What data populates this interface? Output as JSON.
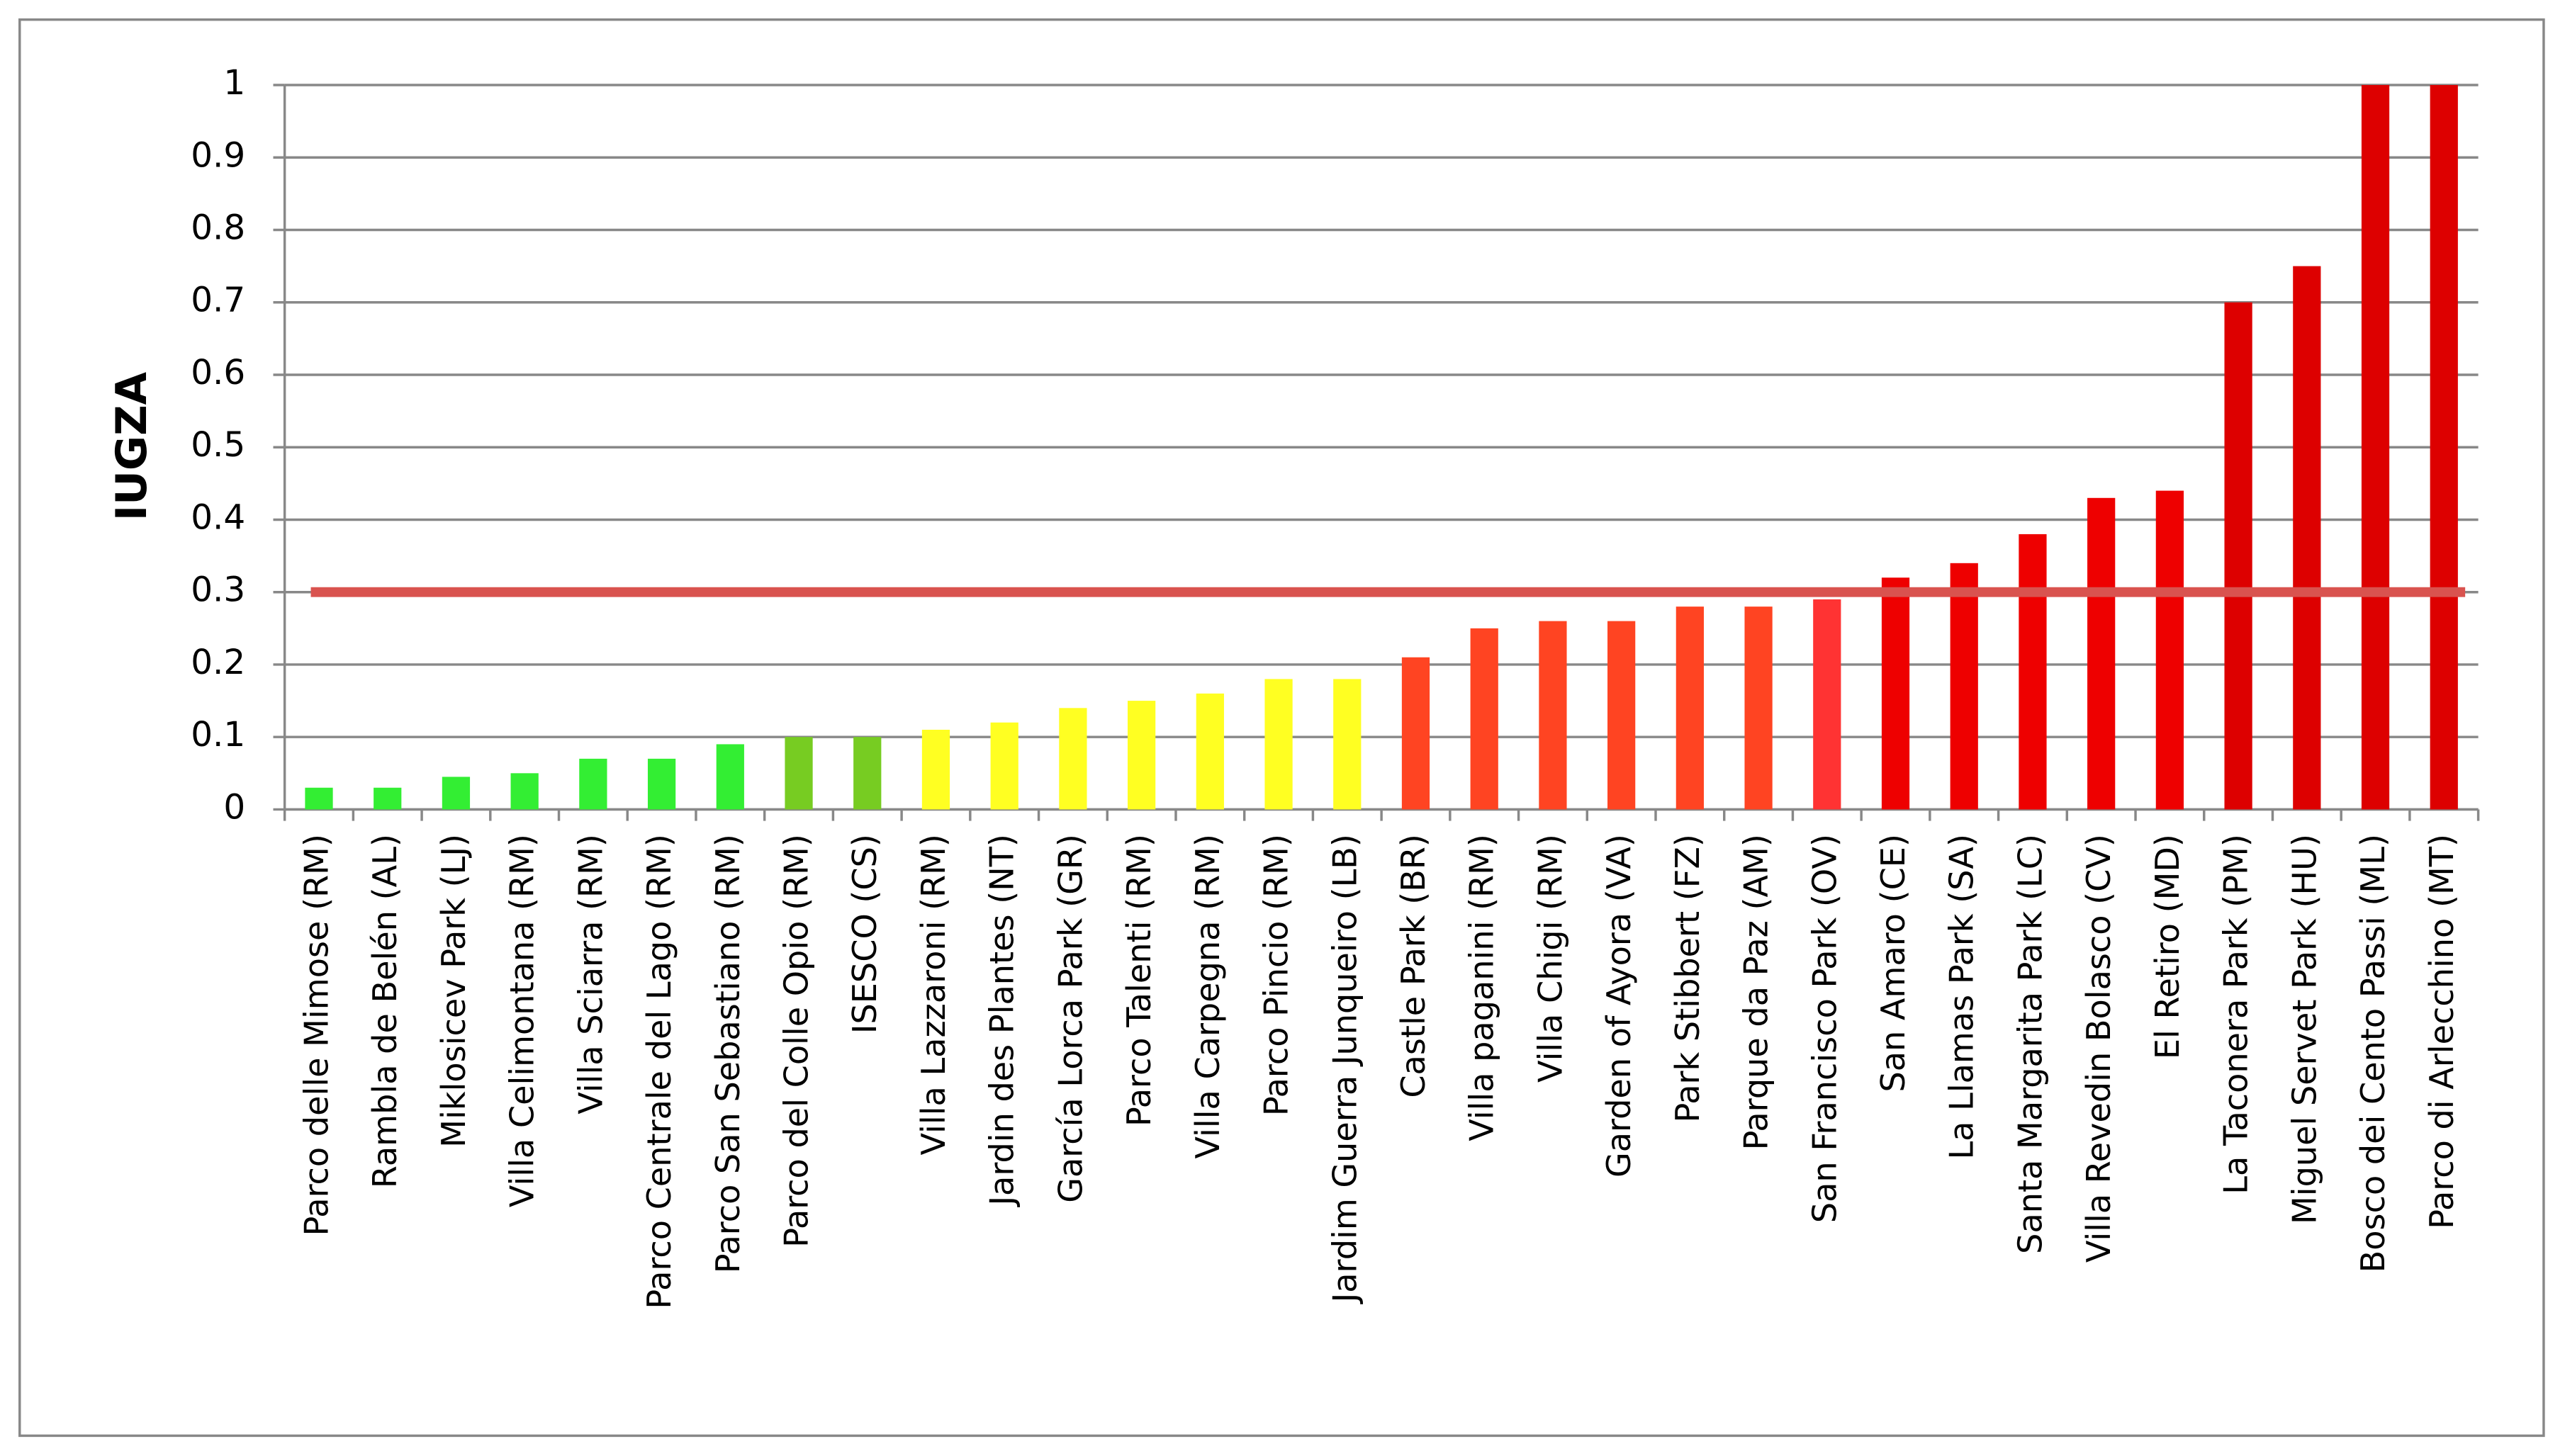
{
  "chart_data": {
    "type": "bar",
    "y_label": "IUGZA",
    "categories": [
      "Parco delle Mimose (RM)",
      "Rambla de Belén (AL)",
      "Miklosicev Park (LJ)",
      "Villa Celimontana (RM)",
      "Villa Sciarra (RM)",
      "Parco Centrale del Lago (RM)",
      "Parco San Sebastiano (RM)",
      "Parco del Colle Opio (RM)",
      "ISESCO (CS)",
      "Villa Lazzaroni (RM)",
      "Jardin des Plantes (NT)",
      "García Lorca Park (GR)",
      "Parco Talenti (RM)",
      "Villa Carpegna (RM)",
      "Parco Pincio (RM)",
      "Jardim Guerra Junqueiro (LB)",
      "Castle Park (BR)",
      "Villa paganini (RM)",
      "Villa Chigi (RM)",
      "Garden of Ayora (VA)",
      "Park Stibbert (FZ)",
      "Parque da Paz (AM)",
      "San Francisco Park (OV)",
      "San Amaro (CE)",
      "La Llamas Park (SA)",
      "Santa Margarita Park (LC)",
      "Villa Revedin Bolasco (CV)",
      "El Retiro (MD)",
      "La Taconera Park (PM)",
      "Miguel Servet Park (HU)",
      "Bosco dei Cento Passi (ML)",
      "Parco di Arlecchino (MT)"
    ],
    "values": [
      0.03,
      0.03,
      0.045,
      0.05,
      0.07,
      0.07,
      0.09,
      0.1,
      0.1,
      0.11,
      0.12,
      0.14,
      0.15,
      0.16,
      0.18,
      0.18,
      0.21,
      0.25,
      0.26,
      0.26,
      0.28,
      0.28,
      0.29,
      0.32,
      0.34,
      0.38,
      0.43,
      0.44,
      0.7,
      0.75,
      1,
      1
    ],
    "colors": [
      "#33ee33",
      "#33ee33",
      "#33ee33",
      "#33ee33",
      "#33ee33",
      "#33ee33",
      "#33ee33",
      "#77cc22",
      "#77cc22",
      "#ffff22",
      "#ffff22",
      "#ffff22",
      "#ffff22",
      "#ffff22",
      "#ffff22",
      "#ffff22",
      "#ff4422",
      "#ff4422",
      "#ff4422",
      "#ff4422",
      "#ff4422",
      "#ff4422",
      "#ff3333",
      "#ee0000",
      "#ee0000",
      "#ee0000",
      "#ee0000",
      "#ee0000",
      "#dd0000",
      "#dd0000",
      "#dd0000",
      "#dd0000"
    ],
    "ylim": [
      0,
      1
    ],
    "yticks": [
      0,
      0.1,
      0.2,
      0.3,
      0.4,
      0.5,
      0.6,
      0.7,
      0.8,
      0.9,
      1
    ],
    "grid": true,
    "reference_line": {
      "value": 0.3,
      "color": "#d9534f"
    }
  }
}
